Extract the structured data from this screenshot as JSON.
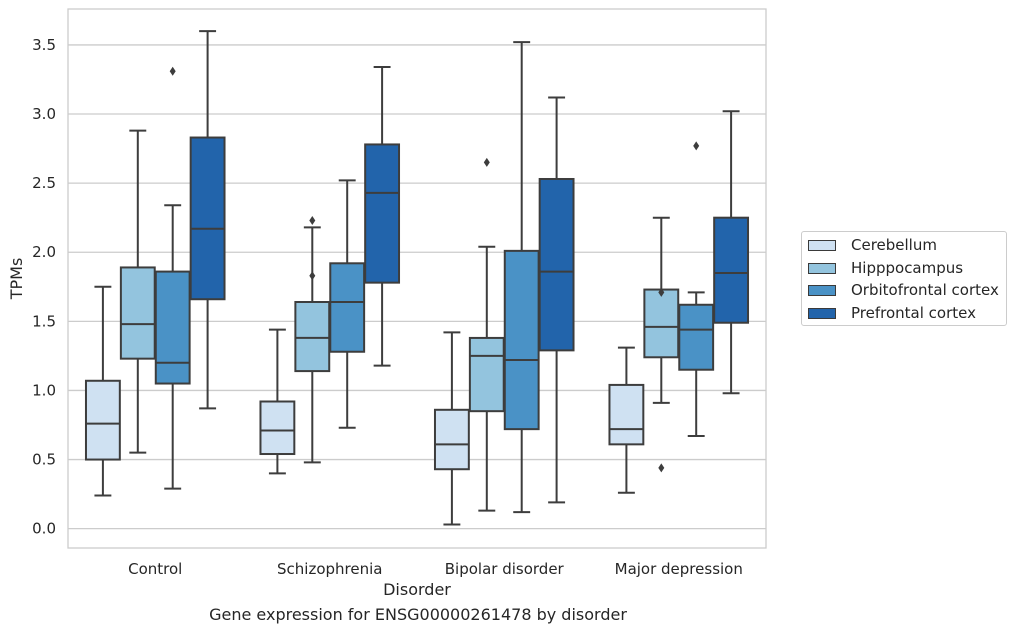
{
  "caption": "Gene expression for ENSG00000261478 by disorder",
  "chart_data": {
    "type": "box",
    "title": "",
    "xlabel": "Disorder",
    "ylabel": "TPMs",
    "ylim": [
      -0.14,
      3.76
    ],
    "yticks": [
      "0.0",
      "0.5",
      "1.0",
      "1.5",
      "2.0",
      "2.5",
      "3.0",
      "3.5"
    ],
    "grid": "horizontal",
    "legend_position": "right",
    "categories": [
      "Control",
      "Schizophrenia",
      "Bipolar disorder",
      "Major depression"
    ],
    "series": [
      {
        "name": "Cerebellum",
        "color": "#cfe1f2",
        "boxes": [
          {
            "whislo": 0.24,
            "q1": 0.5,
            "median": 0.76,
            "q3": 1.07,
            "whishi": 1.75,
            "fliers": []
          },
          {
            "whislo": 0.4,
            "q1": 0.54,
            "median": 0.71,
            "q3": 0.92,
            "whishi": 1.44,
            "fliers": []
          },
          {
            "whislo": 0.03,
            "q1": 0.43,
            "median": 0.61,
            "q3": 0.86,
            "whishi": 1.42,
            "fliers": []
          },
          {
            "whislo": 0.26,
            "q1": 0.61,
            "median": 0.72,
            "q3": 1.04,
            "whishi": 1.31,
            "fliers": []
          }
        ]
      },
      {
        "name": "Hipppocampus",
        "color": "#93c4de",
        "boxes": [
          {
            "whislo": 0.55,
            "q1": 1.23,
            "median": 1.48,
            "q3": 1.89,
            "whishi": 2.88,
            "fliers": []
          },
          {
            "whislo": 0.48,
            "q1": 1.14,
            "median": 1.38,
            "q3": 1.64,
            "whishi": 2.18,
            "fliers": [
              1.83,
              2.23
            ]
          },
          {
            "whislo": 0.13,
            "q1": 0.85,
            "median": 1.25,
            "q3": 1.38,
            "whishi": 2.04,
            "fliers": [
              2.65
            ]
          },
          {
            "whislo": 0.91,
            "q1": 1.24,
            "median": 1.46,
            "q3": 1.73,
            "whishi": 2.25,
            "fliers": [
              0.44,
              1.71
            ]
          }
        ]
      },
      {
        "name": "Orbitofrontal cortex",
        "color": "#4a92c6",
        "boxes": [
          {
            "whislo": 0.29,
            "q1": 1.05,
            "median": 1.2,
            "q3": 1.86,
            "whishi": 2.34,
            "fliers": [
              3.31
            ]
          },
          {
            "whislo": 0.73,
            "q1": 1.28,
            "median": 1.64,
            "q3": 1.92,
            "whishi": 2.52,
            "fliers": []
          },
          {
            "whislo": 0.12,
            "q1": 0.72,
            "median": 1.22,
            "q3": 2.01,
            "whishi": 3.52,
            "fliers": []
          },
          {
            "whislo": 0.67,
            "q1": 1.15,
            "median": 1.44,
            "q3": 1.62,
            "whishi": 1.71,
            "fliers": [
              2.77
            ]
          }
        ]
      },
      {
        "name": "Prefrontal cortex",
        "color": "#2264ab",
        "boxes": [
          {
            "whislo": 0.87,
            "q1": 1.66,
            "median": 2.17,
            "q3": 2.83,
            "whishi": 3.6,
            "fliers": []
          },
          {
            "whislo": 1.18,
            "q1": 1.78,
            "median": 2.43,
            "q3": 2.78,
            "whishi": 3.34,
            "fliers": []
          },
          {
            "whislo": 0.19,
            "q1": 1.29,
            "median": 1.86,
            "q3": 2.53,
            "whishi": 3.12,
            "fliers": []
          },
          {
            "whislo": 0.98,
            "q1": 1.49,
            "median": 1.85,
            "q3": 2.25,
            "whishi": 3.02,
            "fliers": []
          }
        ]
      }
    ]
  }
}
